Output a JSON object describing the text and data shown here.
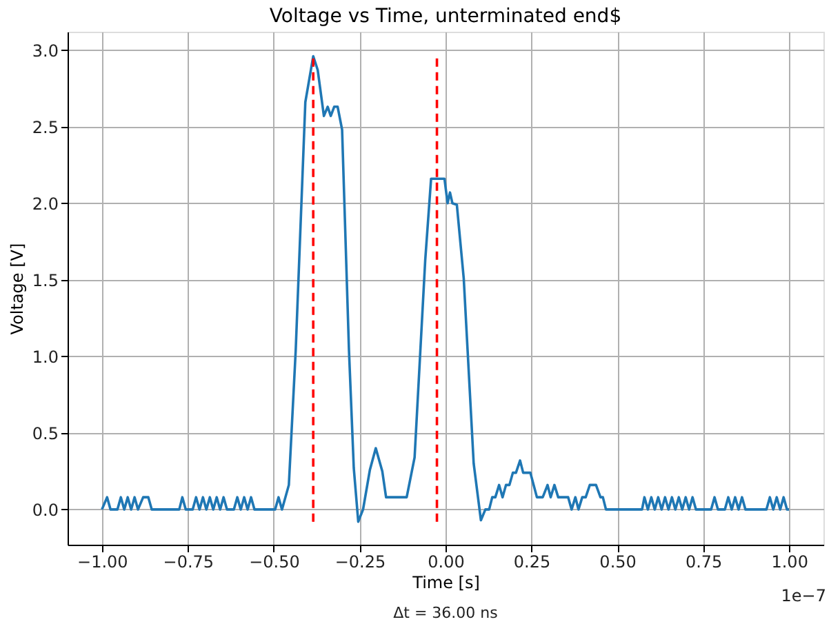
{
  "chart_data": {
    "type": "line",
    "title": "Voltage vs Time, unterminated end$",
    "xlabel": "Time [s]",
    "ylabel": "Voltage [V]",
    "annotations": [
      "Δt = 36.00 ns",
      "1e−7"
    ],
    "x": [
      -1.0,
      -0.985,
      -0.975,
      -0.955,
      -0.945,
      -0.935,
      -0.925,
      -0.915,
      -0.905,
      -0.895,
      -0.88,
      -0.865,
      -0.855,
      -0.775,
      -0.766,
      -0.756,
      -0.736,
      -0.726,
      -0.716,
      -0.706,
      -0.696,
      -0.686,
      -0.676,
      -0.666,
      -0.656,
      -0.646,
      -0.636,
      -0.616,
      -0.606,
      -0.596,
      -0.586,
      -0.576,
      -0.566,
      -0.556,
      -0.496,
      -0.486,
      -0.476,
      -0.456,
      -0.436,
      -0.408,
      -0.385,
      -0.372,
      -0.354,
      -0.343,
      -0.334,
      -0.324,
      -0.314,
      -0.301,
      -0.281,
      -0.267,
      -0.254,
      -0.24,
      -0.22,
      -0.203,
      -0.184,
      -0.173,
      -0.113,
      -0.09,
      -0.059,
      -0.042,
      -0.003,
      0.006,
      0.013,
      0.02,
      0.033,
      0.053,
      0.082,
      0.103,
      0.116,
      0.127,
      0.136,
      0.145,
      0.156,
      0.166,
      0.176,
      0.186,
      0.196,
      0.205,
      0.217,
      0.226,
      0.247,
      0.266,
      0.283,
      0.297,
      0.306,
      0.317,
      0.328,
      0.357,
      0.367,
      0.378,
      0.387,
      0.398,
      0.408,
      0.42,
      0.438,
      0.451,
      0.458,
      0.467,
      0.572,
      0.579,
      0.589,
      0.599,
      0.609,
      0.619,
      0.629,
      0.639,
      0.649,
      0.659,
      0.669,
      0.679,
      0.689,
      0.699,
      0.709,
      0.719,
      0.729,
      0.773,
      0.783,
      0.793,
      0.813,
      0.823,
      0.833,
      0.843,
      0.853,
      0.863,
      0.873,
      0.934,
      0.944,
      0.954,
      0.964,
      0.974,
      0.984,
      0.994,
      1.0
    ],
    "series": [
      {
        "color": "#1f77b4",
        "values": [
          0,
          0.08,
          0,
          0,
          0.08,
          0,
          0.08,
          0,
          0.08,
          0,
          0.08,
          0.08,
          0,
          0,
          0.08,
          0,
          0,
          0.08,
          0,
          0.08,
          0,
          0.08,
          0,
          0.08,
          0,
          0.08,
          0,
          0,
          0.08,
          0,
          0.08,
          0,
          0.08,
          0,
          0,
          0.08,
          0,
          0.16,
          1.04,
          2.66,
          2.96,
          2.87,
          2.57,
          2.63,
          2.57,
          2.63,
          2.63,
          2.48,
          1.04,
          0.27,
          -0.08,
          0,
          0.26,
          0.4,
          0.25,
          0.08,
          0.08,
          0.34,
          1.63,
          2.16,
          2.16,
          2.0,
          2.07,
          2.0,
          1.99,
          1.51,
          0.3,
          -0.07,
          0,
          0,
          0.08,
          0.08,
          0.16,
          0.08,
          0.16,
          0.16,
          0.24,
          0.24,
          0.32,
          0.24,
          0.24,
          0.08,
          0.08,
          0.16,
          0.08,
          0.16,
          0.08,
          0.08,
          0,
          0.08,
          0,
          0.08,
          0.08,
          0.16,
          0.16,
          0.08,
          0.08,
          0,
          0,
          0.08,
          0,
          0.08,
          0,
          0.08,
          0,
          0.08,
          0,
          0.08,
          0,
          0.08,
          0,
          0.08,
          0,
          0.08,
          0,
          0,
          0.08,
          0,
          0,
          0.08,
          0,
          0.08,
          0,
          0.08,
          0,
          0,
          0.08,
          0,
          0.08,
          0,
          0.08,
          0,
          0
        ]
      }
    ],
    "xlim": [
      -1.1,
      1.1
    ],
    "ylim": [
      -0.23,
      3.12
    ],
    "xticks": [
      {
        "value": -1.0,
        "label": "−1.00"
      },
      {
        "value": -0.75,
        "label": "−0.75"
      },
      {
        "value": -0.5,
        "label": "−0.50"
      },
      {
        "value": -0.25,
        "label": "−0.25"
      },
      {
        "value": 0,
        "label": "0.00"
      },
      {
        "value": 0.25,
        "label": "0.25"
      },
      {
        "value": 0.5,
        "label": "0.50"
      },
      {
        "value": 0.75,
        "label": "0.75"
      },
      {
        "value": 1.0,
        "label": "1.00"
      }
    ],
    "yticks": [
      {
        "value": 0,
        "label": "0.0"
      },
      {
        "value": 0.5,
        "label": "0.5"
      },
      {
        "value": 1.0,
        "label": "1.0"
      },
      {
        "value": 1.5,
        "label": "1.5"
      },
      {
        "value": 2.0,
        "label": "2.0"
      },
      {
        "value": 2.5,
        "label": "2.5"
      },
      {
        "value": 3.0,
        "label": "3.0"
      }
    ],
    "ref_lines": [
      {
        "axis": "x",
        "value": -0.385,
        "color": "#ff0000",
        "line_style": "dashed"
      },
      {
        "axis": "x",
        "value": -0.025,
        "color": "#ff0000",
        "line_style": "dashed"
      }
    ],
    "grid": true,
    "marker": "none",
    "line_style": "solid"
  }
}
